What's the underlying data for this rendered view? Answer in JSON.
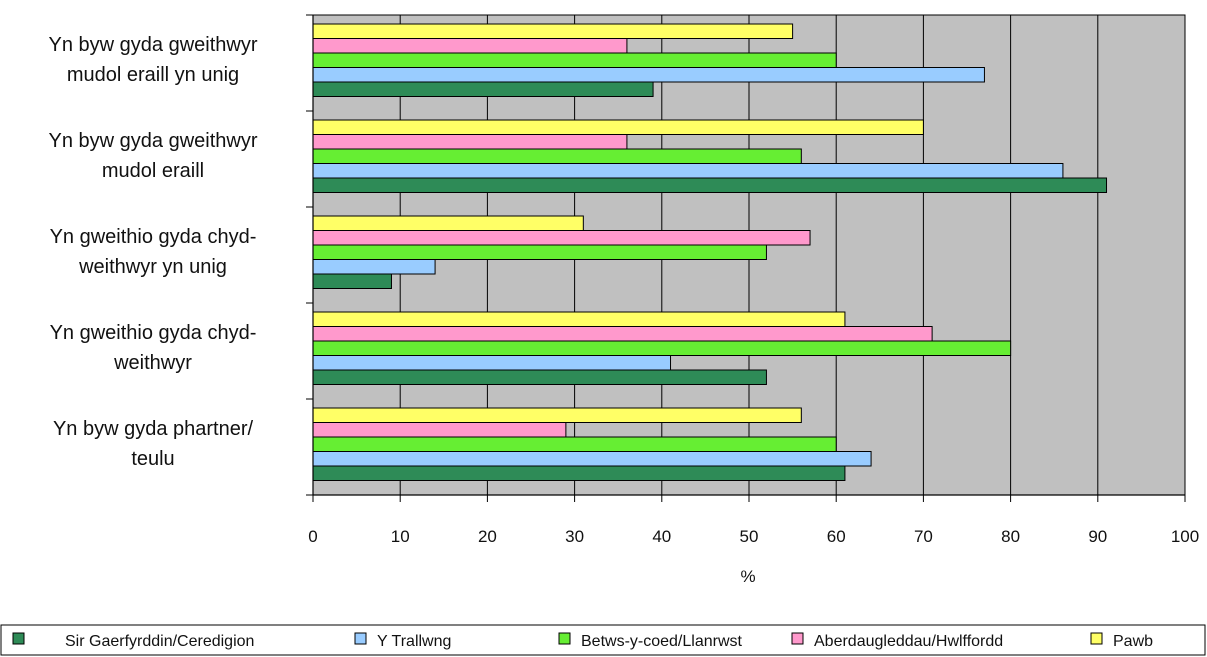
{
  "chart_data": {
    "type": "bar",
    "orientation": "horizontal",
    "title": "",
    "xlabel": "%",
    "ylabel": "",
    "xlim": [
      0,
      100
    ],
    "x_ticks": [
      0,
      10,
      20,
      30,
      40,
      50,
      60,
      70,
      80,
      90,
      100
    ],
    "grid": true,
    "plot_background": "#c0c0c0",
    "legend_position": "bottom",
    "categories": [
      [
        "Yn byw gyda gweithwyr",
        "mudol eraill yn unig"
      ],
      [
        "Yn byw gyda gweithwyr",
        "mudol eraill"
      ],
      [
        "Yn gweithio gyda chyd-",
        "weithwyr yn unig"
      ],
      [
        "Yn gweithio gyda chyd-",
        "weithwyr"
      ],
      [
        "Yn byw gyda phartner/",
        "teulu"
      ]
    ],
    "series": [
      {
        "name": "Sir Gaerfyrddin/Ceredigion",
        "color": "#2e8b57",
        "values": [
          39,
          91,
          9,
          52,
          61
        ]
      },
      {
        "name": "Y Trallwng",
        "color": "#99ccff",
        "values": [
          77,
          86,
          14,
          41,
          64
        ]
      },
      {
        "name": "Betws-y-coed/Llanrwst",
        "color": "#66ee33",
        "values": [
          60,
          56,
          52,
          80,
          60
        ]
      },
      {
        "name": "Aberdaugleddau/Hwlffordd",
        "color": "#ff99cc",
        "values": [
          36,
          36,
          57,
          71,
          29
        ]
      },
      {
        "name": "Pawb",
        "color": "#ffff66",
        "values": [
          55,
          70,
          31,
          61,
          56
        ]
      }
    ]
  }
}
